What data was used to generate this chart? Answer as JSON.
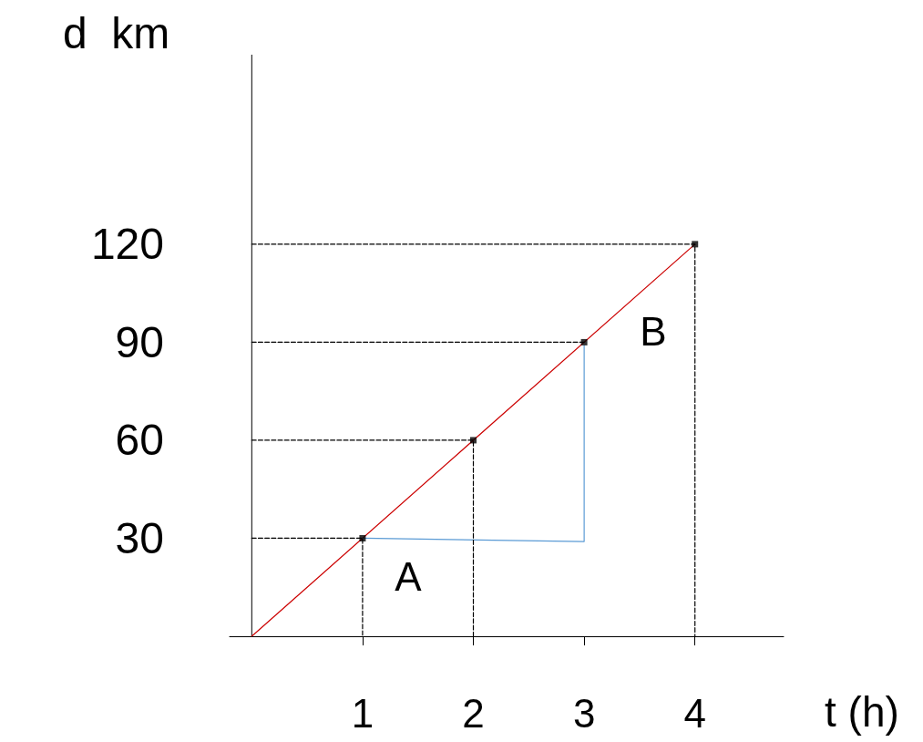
{
  "chart_data": {
    "type": "line",
    "xlabel": "t (h)",
    "ylabel": "d  km",
    "series": [
      {
        "color": "#cc0000",
        "x": [
          0,
          4
        ],
        "values": [
          0,
          120
        ],
        "marker": "none"
      },
      {
        "color": "#5b9bd5",
        "x": [
          1,
          3,
          3
        ],
        "values": [
          30,
          29,
          89
        ],
        "marker": "none"
      },
      {
        "color": "#000000",
        "x": [
          0,
          1,
          1
        ],
        "values": [
          30,
          30,
          0
        ],
        "marker": "none",
        "line_style": "dashed"
      },
      {
        "color": "#000000",
        "x": [
          0,
          2,
          2
        ],
        "values": [
          60,
          60,
          0
        ],
        "marker": "none",
        "line_style": "dashed"
      },
      {
        "color": "#000000",
        "x": [
          0,
          3
        ],
        "values": [
          90,
          90
        ],
        "marker": "none",
        "line_style": "dashed"
      },
      {
        "color": "#000000",
        "x": [
          0,
          4,
          4
        ],
        "values": [
          120,
          120,
          0
        ],
        "marker": "none",
        "line_style": "dashed"
      },
      {
        "type": "scatter",
        "color": "#000000",
        "x": [
          1,
          2,
          3,
          4
        ],
        "values": [
          30,
          60,
          90,
          120
        ],
        "marker": "square"
      }
    ],
    "xlim": [
      -0.2,
      4.8
    ],
    "xticks": [
      1,
      2,
      3,
      4
    ],
    "ylim": [
      0,
      178
    ],
    "yticks": [
      30,
      60,
      90,
      120
    ],
    "grid": false,
    "annotations": [
      "A",
      "B"
    ]
  }
}
